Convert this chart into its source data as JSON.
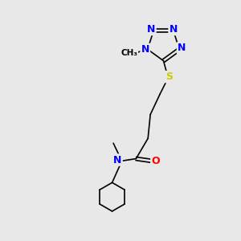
{
  "bg_color": "#e8e8e8",
  "atom_colors": {
    "N": "#0000ff",
    "O": "#ff0000",
    "S": "#cccc00",
    "C": "#000000"
  },
  "bond_color": "#000000",
  "double_bond_color": "#000000",
  "font_size_atom": 9,
  "font_size_methyl": 8
}
